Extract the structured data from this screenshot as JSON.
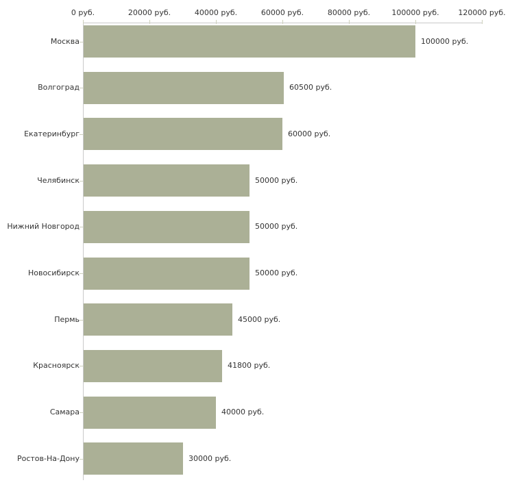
{
  "chart_data": {
    "type": "bar",
    "orientation": "horizontal",
    "title": "",
    "xlabel": "",
    "ylabel": "",
    "categories": [
      "Москва",
      "Волгоград",
      "Екатеринбург",
      "Челябинск",
      "Нижний Новгород",
      "Новосибирск",
      "Пермь",
      "Красноярск",
      "Самара",
      "Ростов-На-Дону"
    ],
    "values": [
      100000,
      60500,
      60000,
      50000,
      50000,
      50000,
      45000,
      41800,
      40000,
      30000
    ],
    "value_labels": [
      "100000 руб.",
      "60500 руб.",
      "60000 руб.",
      "50000 руб.",
      "50000 руб.",
      "50000 руб.",
      "45000 руб.",
      "41800 руб.",
      "40000 руб.",
      "30000 руб."
    ],
    "x_tick_values": [
      0,
      20000,
      40000,
      60000,
      80000,
      100000,
      120000
    ],
    "x_tick_labels": [
      "0 руб.",
      "20000 руб.",
      "40000 руб.",
      "60000 руб.",
      "80000 руб.",
      "100000 руб.",
      "120000 руб."
    ],
    "xlim": [
      0,
      120000
    ],
    "grid": false,
    "legend": false,
    "colors": {
      "bar": "#abb096",
      "axis_line": "#c9c9c9",
      "tick_mark": "#cdd0bc",
      "text": "#333333",
      "background": "#ffffff"
    }
  }
}
